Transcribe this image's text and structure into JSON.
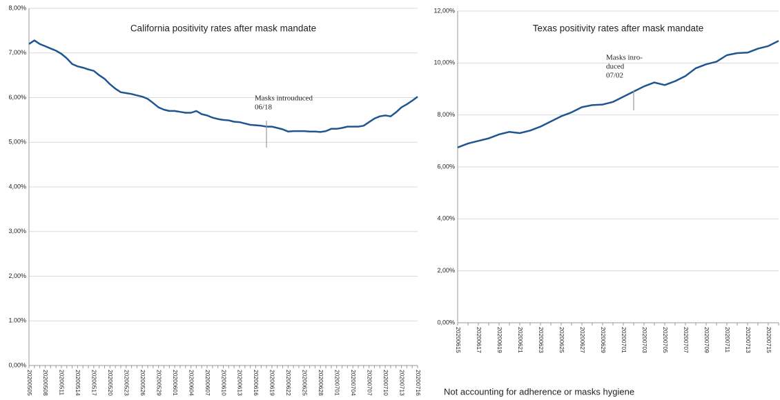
{
  "chart_data": [
    {
      "type": "line",
      "title": "California positivity rates after mask mandate",
      "annotation": [
        "Masks introuduced",
        "06/18"
      ],
      "categories": [
        "20200505",
        null,
        null,
        "20200508",
        null,
        null,
        "20200511",
        null,
        null,
        "20200514",
        null,
        null,
        "20200517",
        null,
        null,
        "20200520",
        null,
        null,
        "20200523",
        null,
        null,
        "20200526",
        null,
        null,
        "20200529",
        null,
        null,
        "20200601",
        null,
        null,
        "20200604",
        null,
        null,
        "20200607",
        null,
        null,
        "20200610",
        null,
        null,
        "20200613",
        null,
        null,
        "20200616",
        null,
        null,
        "20200619",
        null,
        null,
        "20200622",
        null,
        null,
        "20200625",
        null,
        null,
        "20200628",
        null,
        null,
        "20200701",
        null,
        null,
        "20200704",
        null,
        null,
        "20200707",
        null,
        null,
        "20200710",
        null,
        null,
        "20200713",
        null,
        null,
        "20200716"
      ],
      "values": [
        7.2,
        7.28,
        7.2,
        7.15,
        7.1,
        7.05,
        6.98,
        6.88,
        6.75,
        6.7,
        6.67,
        6.63,
        6.6,
        6.5,
        6.42,
        6.3,
        6.2,
        6.12,
        6.1,
        6.08,
        6.05,
        6.02,
        5.97,
        5.88,
        5.78,
        5.73,
        5.7,
        5.7,
        5.68,
        5.66,
        5.66,
        5.7,
        5.63,
        5.6,
        5.55,
        5.52,
        5.5,
        5.49,
        5.46,
        5.45,
        5.42,
        5.39,
        5.38,
        5.37,
        5.35,
        5.35,
        5.32,
        5.29,
        5.24,
        5.25,
        5.25,
        5.25,
        5.24,
        5.24,
        5.23,
        5.25,
        5.3,
        5.3,
        5.32,
        5.35,
        5.35,
        5.35,
        5.37,
        5.45,
        5.53,
        5.58,
        5.6,
        5.58,
        5.67,
        5.78,
        5.85,
        5.93,
        6.02
      ],
      "color": "#1f5591",
      "ylim": [
        0,
        8
      ],
      "yticks": [
        {
          "value": 0,
          "label": "0,00%"
        },
        {
          "value": 1,
          "label": "1.00%"
        },
        {
          "value": 2,
          "label": "2,00%"
        },
        {
          "value": 3,
          "label": "3,00%"
        },
        {
          "value": 4,
          "label": "4,00%"
        },
        {
          "value": 5,
          "label": "5,00%"
        },
        {
          "value": 6,
          "label": "6,00%"
        },
        {
          "value": 7,
          "label": "7,00%"
        },
        {
          "value": 8,
          "label": "8,00%"
        }
      ],
      "grid": true
    },
    {
      "type": "line",
      "title": "Texas positivity rates after mask mandate",
      "annotation": [
        "Masks inro-",
        "duced",
        "07/02"
      ],
      "categories": [
        "20200615",
        null,
        "20200617",
        null,
        "20200619",
        null,
        "20200621",
        null,
        "20200623",
        null,
        "20200625",
        null,
        "20200627",
        null,
        "20200629",
        null,
        "20200701",
        null,
        "20200703",
        null,
        "20200705",
        null,
        "20200707",
        null,
        "20200709",
        null,
        "20200711",
        null,
        "20200713",
        null,
        "20200715",
        null
      ],
      "values": [
        6.75,
        6.9,
        7.0,
        7.1,
        7.25,
        7.35,
        7.3,
        7.4,
        7.55,
        7.75,
        7.95,
        8.1,
        8.3,
        8.38,
        8.4,
        8.5,
        8.7,
        8.9,
        9.1,
        9.25,
        9.15,
        9.3,
        9.5,
        9.8,
        9.95,
        10.05,
        10.3,
        10.38,
        10.4,
        10.55,
        10.65,
        10.85
      ],
      "color": "#1f5591",
      "ylim": [
        0,
        12
      ],
      "yticks": [
        {
          "value": 0,
          "label": "0,00%"
        },
        {
          "value": 2,
          "label": "2,00%"
        },
        {
          "value": 4,
          "label": "4,00%"
        },
        {
          "value": 6,
          "label": "6,00%"
        },
        {
          "value": 8,
          "label": "8,00%"
        },
        {
          "value": 10,
          "label": "10,00%"
        },
        {
          "value": 12,
          "label": "12,00%"
        }
      ],
      "grid": true
    }
  ],
  "note": "Not accounting for adherence or masks hygiene"
}
